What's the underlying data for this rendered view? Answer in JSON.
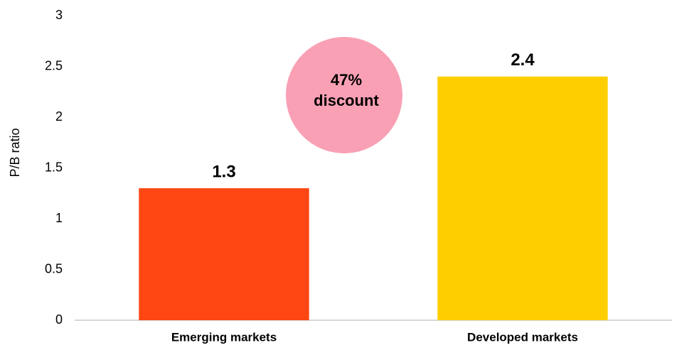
{
  "chart_data": {
    "type": "bar",
    "categories": [
      "Emerging markets",
      "Developed markets"
    ],
    "values": [
      1.3,
      2.4
    ],
    "colors": [
      "#ff4713",
      "#ffce00"
    ],
    "ylabel": "P/B ratio",
    "ylim": [
      0,
      3
    ],
    "yticks": [
      0,
      0.5,
      1,
      1.5,
      2,
      2.5,
      3
    ],
    "grid": false,
    "annotation": [
      "47%",
      "discount"
    ],
    "annotation_color": "#f9a0b4"
  }
}
